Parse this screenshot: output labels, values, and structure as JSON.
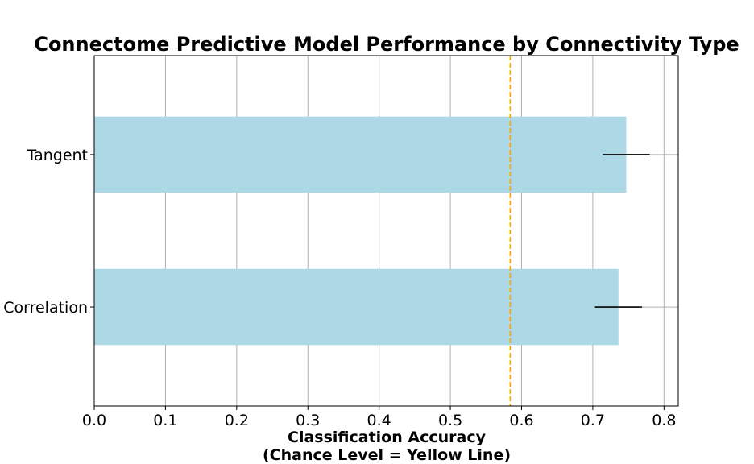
{
  "chart_data": {
    "type": "bar",
    "orientation": "horizontal",
    "title": "Connectome Predictive Model Performance by Connectivity Type",
    "xlabel_lines": [
      "Classification Accuracy",
      "(Chance Level = Yellow Line)"
    ],
    "ylabel": "",
    "categories": [
      "Correlation",
      "Tangent"
    ],
    "values": [
      0.736,
      0.747
    ],
    "errors": [
      0.033,
      0.033
    ],
    "xlim": [
      0.0,
      0.82
    ],
    "xticks": [
      0.0,
      0.1,
      0.2,
      0.3,
      0.4,
      0.5,
      0.6,
      0.7,
      0.8
    ],
    "xtick_labels": [
      "0.0",
      "0.1",
      "0.2",
      "0.3",
      "0.4",
      "0.5",
      "0.6",
      "0.7",
      "0.8"
    ],
    "chance_level": 0.584,
    "grid": true,
    "colors": {
      "bar": "#add8e6",
      "chance_line": "#ffa500",
      "error_bar": "#000000",
      "grid": "#b0b0b0"
    }
  }
}
